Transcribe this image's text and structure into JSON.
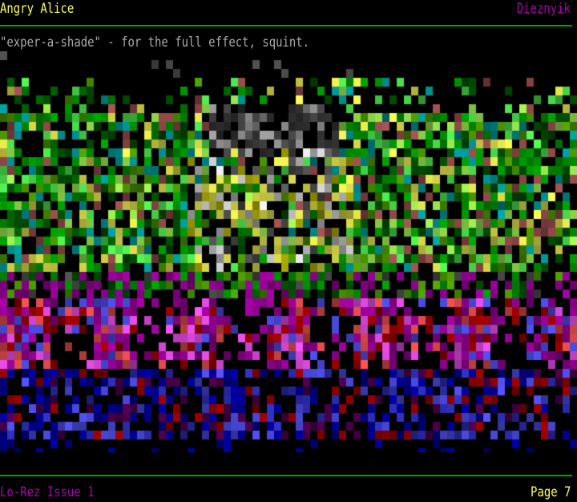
{
  "header": {
    "title": "Angry Alice",
    "artist": "Dieznyik"
  },
  "subtitle": "\"exper-a-shade\" - for the full effect, squint.",
  "footer": {
    "issue": "Lo-Rez Issue 1",
    "page": "Page 7"
  },
  "colors": {
    "accent_line": "#00aa00",
    "title": "#ffff55",
    "artist": "#aa00aa",
    "subtitle": "#aaaaaa"
  }
}
